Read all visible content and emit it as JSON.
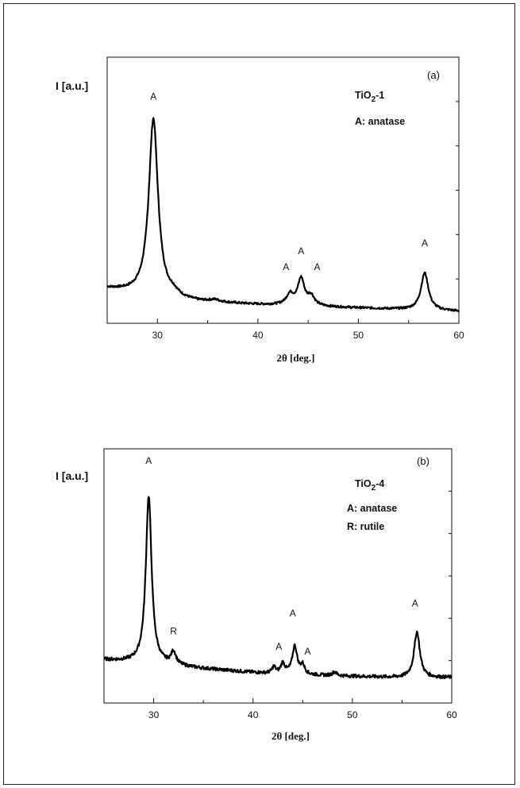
{
  "chart_data": [
    {
      "type": "line",
      "panel_label": "(a)",
      "ylabel": "I [a.u.]",
      "xlabel": "2θ [deg.]",
      "xlim": [
        25,
        60
      ],
      "ylim": [
        0,
        100
      ],
      "xticks": [
        30,
        40,
        50,
        60
      ],
      "xtick_labels": [
        "30",
        "40",
        "50",
        "60"
      ],
      "sample": {
        "base": "TiO",
        "sub": "2",
        "suffix": "-1"
      },
      "legend": [
        "A: anatase"
      ],
      "baseline": [
        [
          25,
          13
        ],
        [
          28,
          11
        ],
        [
          31,
          9
        ],
        [
          34,
          8
        ],
        [
          37,
          7.5
        ],
        [
          40,
          7
        ],
        [
          44,
          6.5
        ],
        [
          48,
          6
        ],
        [
          52,
          5.5
        ],
        [
          56,
          5
        ],
        [
          60,
          4.5
        ]
      ],
      "peaks": [
        {
          "center": 29.6,
          "height": 67,
          "width": 0.55
        },
        {
          "center": 31.6,
          "height": 1.5,
          "width": 0.6
        },
        {
          "center": 35.7,
          "height": 0.8,
          "width": 0.6
        },
        {
          "center": 43.2,
          "height": 4,
          "width": 0.45
        },
        {
          "center": 44.3,
          "height": 10,
          "width": 0.4
        },
        {
          "center": 45.3,
          "height": 3.5,
          "width": 0.4
        },
        {
          "center": 56.6,
          "height": 14,
          "width": 0.45
        }
      ],
      "peak_labels": [
        {
          "x": 29.6,
          "y": 84,
          "text": "A"
        },
        {
          "x": 42.8,
          "y": 20,
          "text": "A"
        },
        {
          "x": 44.3,
          "y": 26,
          "text": "A"
        },
        {
          "x": 45.9,
          "y": 20,
          "text": "A"
        },
        {
          "x": 56.6,
          "y": 29,
          "text": "A"
        }
      ]
    },
    {
      "type": "line",
      "panel_label": "(b)",
      "ylabel": "I [a.u.]",
      "xlabel": "2θ [deg.]",
      "xlim": [
        25,
        60
      ],
      "ylim": [
        0,
        100
      ],
      "xticks": [
        30,
        40,
        50,
        60
      ],
      "xtick_labels": [
        "30",
        "40",
        "50",
        "60"
      ],
      "sample": {
        "base": "TiO",
        "sub": "2",
        "suffix": "-4"
      },
      "legend": [
        "A: anatase",
        "R: rutile"
      ],
      "baseline": [
        [
          25,
          17
        ],
        [
          28,
          16
        ],
        [
          31,
          15
        ],
        [
          35,
          13.5
        ],
        [
          40,
          12
        ],
        [
          45,
          11
        ],
        [
          50,
          10.5
        ],
        [
          55,
          10
        ],
        [
          60,
          10
        ]
      ],
      "peaks": [
        {
          "center": 29.5,
          "height": 66,
          "width": 0.35
        },
        {
          "center": 32.0,
          "height": 5,
          "width": 0.3
        },
        {
          "center": 42.1,
          "height": 2.5,
          "width": 0.2
        },
        {
          "center": 43.0,
          "height": 4,
          "width": 0.25
        },
        {
          "center": 44.2,
          "height": 11,
          "width": 0.3
        },
        {
          "center": 45.0,
          "height": 3.5,
          "width": 0.25
        },
        {
          "center": 48.2,
          "height": 1.5,
          "width": 0.25
        },
        {
          "center": 56.5,
          "height": 18,
          "width": 0.35
        }
      ],
      "peak_labels": [
        {
          "x": 29.5,
          "y": 94,
          "text": "A"
        },
        {
          "x": 32.0,
          "y": 27,
          "text": "R"
        },
        {
          "x": 42.6,
          "y": 21,
          "text": "A"
        },
        {
          "x": 44.0,
          "y": 34,
          "text": "A"
        },
        {
          "x": 45.5,
          "y": 19,
          "text": "A"
        },
        {
          "x": 56.3,
          "y": 38,
          "text": "A"
        }
      ]
    }
  ]
}
